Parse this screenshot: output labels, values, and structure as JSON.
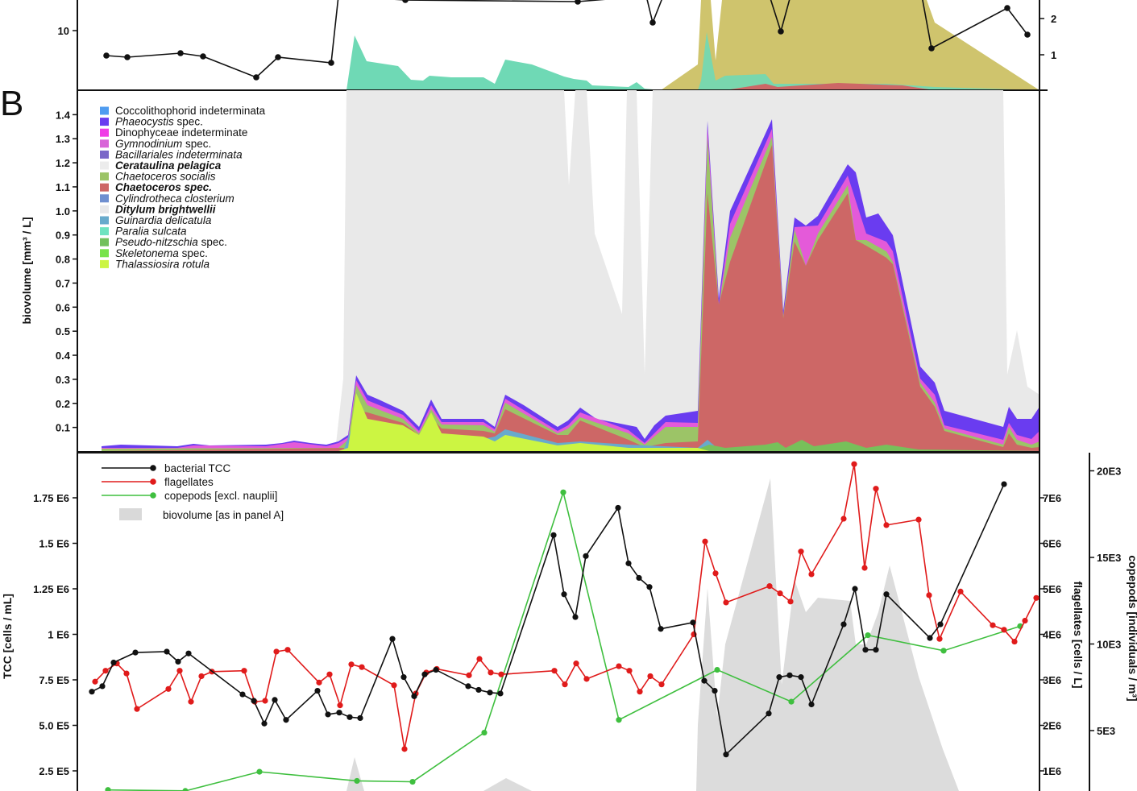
{
  "panels": {
    "b_label": "B"
  },
  "colors": {
    "gray": "#e9e9e9",
    "ditylum": "#d9d9d9",
    "chaetoceros": "#cd6766",
    "socialis": "#9cc467",
    "phaeocystis": "#6a3cf0",
    "gymnodinium": "#e45ad9",
    "dinophyceae": "#f03ce6",
    "thalassiosira": "#ccf542",
    "skeletonema": "#77e34a",
    "guinardia": "#68aacc",
    "paralia": "#6fd9b5",
    "gold": "#cfc46d",
    "tcc": "#111111",
    "flagellates": "#e01b1b",
    "copepods": "#3fbf3f"
  },
  "chart_data": [
    {
      "id": "panel_a_partial",
      "type": "area",
      "yticks_left": [
        "10"
      ],
      "yticks_right": [
        "2",
        "1"
      ],
      "line_markers": [
        {
          "x": 132,
          "y": 69
        },
        {
          "x": 158,
          "y": 71
        },
        {
          "x": 224,
          "y": 66
        },
        {
          "x": 252,
          "y": 70
        },
        {
          "x": 318,
          "y": 96
        },
        {
          "x": 345,
          "y": 71
        },
        {
          "x": 411,
          "y": 78
        },
        {
          "x": 420,
          "y": -5
        },
        {
          "x": 503,
          "y": 0
        },
        {
          "x": 717,
          "y": 2
        },
        {
          "x": 802,
          "y": -5
        },
        {
          "x": 810,
          "y": 28
        },
        {
          "x": 823,
          "y": -5
        },
        {
          "x": 955,
          "y": -5
        },
        {
          "x": 969,
          "y": 39
        },
        {
          "x": 981,
          "y": -5
        },
        {
          "x": 1144,
          "y": -5
        },
        {
          "x": 1156,
          "y": 60
        },
        {
          "x": 1250,
          "y": 10
        },
        {
          "x": 1275,
          "y": 43
        }
      ]
    },
    {
      "id": "panel_b",
      "type": "area",
      "ylabel": "biovolume [mm³ / L]",
      "yticks": [
        "0.1",
        "0.2",
        "0.3",
        "0.4",
        "0.5",
        "0.6",
        "0.7",
        "0.8",
        "0.9",
        "1.0",
        "1.1",
        "1.2",
        "1.3",
        "1.4"
      ],
      "ylim": [
        0,
        1.5
      ],
      "legend": [
        {
          "name": "Coccolithophorid indeterminata",
          "style": "normal",
          "color": "#4f9cf0"
        },
        {
          "name": "Phaeocystis",
          "suffix": " spec.",
          "style": "italic",
          "color": "#6a3cf0"
        },
        {
          "name": "Dinophyceae indeterminate",
          "style": "normal",
          "color": "#f03ce6"
        },
        {
          "name": "Gymnodinium",
          "suffix": " spec.",
          "style": "italic",
          "color": "#d864d8"
        },
        {
          "name": "Bacillariales indeterminata",
          "style": "italic",
          "color": "#7b68c8"
        },
        {
          "name": "Cerataulina pelagica",
          "style": "bold",
          "color": "#ececec"
        },
        {
          "name": "Chaetoceros socialis",
          "style": "italic",
          "color": "#9cc467"
        },
        {
          "name": "Chaetoceros spec.",
          "style": "bold",
          "color": "#cd6766"
        },
        {
          "name": "Cylindrotheca closterium",
          "style": "italic",
          "color": "#6f8fd0"
        },
        {
          "name": "Ditylum brightwellii",
          "style": "bold",
          "color": "#e8e8ea"
        },
        {
          "name": "Guinardia delicatula",
          "style": "italic",
          "color": "#68aacc"
        },
        {
          "name": "Paralia sulcata",
          "style": "italic",
          "color": "#6fe3c0"
        },
        {
          "name": "Pseudo-nitzschia",
          "suffix": " spec.",
          "style": "italic",
          "color": "#72c05c"
        },
        {
          "name": "Skeletonema",
          "suffix": " spec.",
          "style": "italic",
          "color": "#77e34a"
        },
        {
          "name": "Thalassiosira rotula",
          "style": "italic",
          "color": "#ccf542"
        }
      ]
    },
    {
      "id": "panel_c",
      "type": "line",
      "ylabel_left": "TCC [cells / mL]",
      "ylabel_right1": "flagellates [cells / L]",
      "ylabel_right2": "copepods [individuals / m³]",
      "yticks_left": [
        "2.5 E5",
        "5.0 E5",
        "7.5 E5",
        "1 E6",
        "1.25 E6",
        "1.5 E6",
        "1.75 E6"
      ],
      "yticks_right1": [
        "1E6",
        "2E6",
        "3E6",
        "4E6",
        "5E6",
        "6E6",
        "7E6"
      ],
      "yticks_right2": [
        "5E3",
        "10E3",
        "15E3",
        "20E3"
      ],
      "legend": [
        {
          "name": "bacterial TCC",
          "color": "#111111"
        },
        {
          "name": "flagellates",
          "color": "#e01b1b"
        },
        {
          "name": "copepods [excl. nauplii]",
          "color": "#3fbf3f"
        },
        {
          "name": "biovolume [as in panel A]",
          "color": "#d9d9d9"
        }
      ],
      "series": [
        {
          "name": "bacterial TCC",
          "points": [
            [
              114,
              685000.0
            ],
            [
              127,
              715000.0
            ],
            [
              141,
              845000.0
            ],
            [
              168,
              900000.0
            ],
            [
              207,
              905000.0
            ],
            [
              221,
              850000.0
            ],
            [
              234,
              895000.0
            ],
            [
              301,
              670000.0
            ],
            [
              315,
              635000.0
            ],
            [
              328,
              510000.0
            ],
            [
              341,
              640000.0
            ],
            [
              355,
              530000.0
            ],
            [
              394,
              690000.0
            ],
            [
              407,
              560000.0
            ],
            [
              421,
              570000.0
            ],
            [
              434,
              545000.0
            ],
            [
              447,
              540000.0
            ],
            [
              487,
              975000.0
            ],
            [
              501,
              765000.0
            ],
            [
              514,
              660000.0
            ],
            [
              527,
              780000.0
            ],
            [
              541,
              805000.0
            ],
            [
              581,
              715000.0
            ],
            [
              594,
              695000.0
            ],
            [
              608,
              680000.0
            ],
            [
              621,
              675000.0
            ],
            [
              687,
              1545000.0
            ],
            [
              700,
              1220000.0
            ],
            [
              714,
              1095000.0
            ],
            [
              727,
              1430000.0
            ],
            [
              767,
              1695000.0
            ],
            [
              780,
              1390000.0
            ],
            [
              793,
              1310000.0
            ],
            [
              806,
              1260000.0
            ],
            [
              820,
              1030000.0
            ],
            [
              860,
              1065000.0
            ],
            [
              874,
              745000.0
            ],
            [
              887,
              690000.0
            ],
            [
              901,
              340000.0
            ],
            [
              954,
              565000.0
            ],
            [
              967,
              765000.0
            ],
            [
              980,
              775000.0
            ],
            [
              994,
              765000.0
            ],
            [
              1007,
              615000.0
            ],
            [
              1047,
              1055000.0
            ],
            [
              1061,
              1250000.0
            ],
            [
              1074,
              915000.0
            ],
            [
              1087,
              915000.0
            ],
            [
              1100,
              1220000.0
            ],
            [
              1154,
              980000.0
            ],
            [
              1167,
              1055000.0
            ],
            [
              1246,
              1825000.0
            ]
          ]
        },
        {
          "name": "flagellates",
          "points": [
            [
              118,
              740000.0
            ],
            [
              131,
              800000.0
            ],
            [
              145,
              840000.0
            ],
            [
              157,
              785000.0
            ],
            [
              170,
              590000.0
            ],
            [
              209,
              700000.0
            ],
            [
              223,
              800000.0
            ],
            [
              237,
              630000.0
            ],
            [
              250,
              770000.0
            ],
            [
              263,
              795000.0
            ],
            [
              303,
              800000.0
            ],
            [
              316,
              630000.0
            ],
            [
              329,
              635000.0
            ],
            [
              343,
              905000.0
            ],
            [
              357,
              915000.0
            ],
            [
              396,
              735000.0
            ],
            [
              409,
              780000.0
            ],
            [
              422,
              610000.0
            ],
            [
              436,
              835000.0
            ],
            [
              449,
              820000.0
            ],
            [
              489,
              720000.0
            ],
            [
              502,
              370000.0
            ],
            [
              516,
              675000.0
            ],
            [
              529,
              790000.0
            ],
            [
              542,
              810000.0
            ],
            [
              582,
              775000.0
            ],
            [
              595,
              865000.0
            ],
            [
              609,
              790000.0
            ],
            [
              622,
              780000.0
            ],
            [
              688,
              800000.0
            ],
            [
              701,
              725000.0
            ],
            [
              715,
              840000.0
            ],
            [
              728,
              755000.0
            ],
            [
              768,
              825000.0
            ],
            [
              781,
              800000.0
            ],
            [
              794,
              685000.0
            ],
            [
              807,
              770000.0
            ],
            [
              821,
              725000.0
            ],
            [
              861,
              1000000.0
            ],
            [
              875,
              1510000.0
            ],
            [
              888,
              1335000.0
            ],
            [
              901,
              1175000.0
            ],
            [
              955,
              1265000.0
            ],
            [
              968,
              1225000.0
            ],
            [
              981,
              1180000.0
            ],
            [
              994,
              1455000.0
            ],
            [
              1007,
              1330000.0
            ],
            [
              1047,
              1635000.0
            ],
            [
              1060,
              1935000.0
            ],
            [
              1073,
              1365000.0
            ],
            [
              1087,
              1800000.0
            ],
            [
              1100,
              1600000.0
            ],
            [
              1140,
              1630000.0
            ],
            [
              1153,
              1215000.0
            ],
            [
              1166,
              975000.0
            ],
            [
              1192,
              1235000.0
            ],
            [
              1232,
              1050000.0
            ],
            [
              1246,
              1025000.0
            ],
            [
              1259,
              960000.0
            ],
            [
              1272,
              1075000.0
            ],
            [
              1286,
              1200000.0
            ]
          ]
        },
        {
          "name": "copepods [excl. nauplii]",
          "points": [
            [
              134,
              145000.0
            ],
            [
              230,
              140000.0
            ],
            [
              322,
              245000.0
            ],
            [
              443,
              195000.0
            ],
            [
              512,
              190000.0
            ],
            [
              601,
              460000.0
            ],
            [
              699,
              1780000.0
            ],
            [
              768,
              530000.0
            ],
            [
              890,
              805000.0
            ],
            [
              982,
              630000.0
            ],
            [
              1077,
              995000.0
            ],
            [
              1171,
              910000.0
            ],
            [
              1266,
              1045000.0
            ]
          ]
        }
      ]
    }
  ]
}
